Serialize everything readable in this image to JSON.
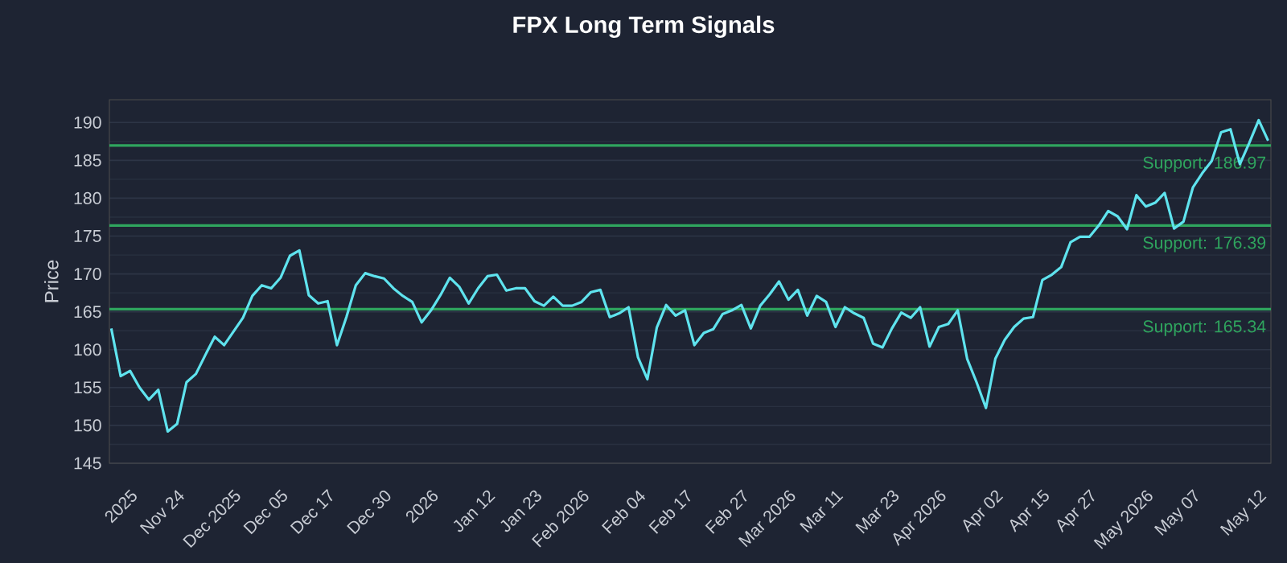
{
  "chart_data": {
    "type": "line",
    "title": "FPX Long Term Signals",
    "ylabel": "Price",
    "categories": [
      null,
      null,
      "2025",
      null,
      null,
      null,
      null,
      "Nov 24",
      null,
      null,
      null,
      null,
      null,
      "Dec 2025",
      null,
      null,
      null,
      null,
      "Dec 05",
      null,
      null,
      null,
      null,
      "Dec 17",
      null,
      null,
      null,
      null,
      null,
      "Dec 30",
      null,
      null,
      null,
      null,
      "2026",
      null,
      null,
      null,
      null,
      null,
      "Jan 12",
      null,
      null,
      null,
      null,
      "Jan 23",
      null,
      null,
      null,
      null,
      "Feb 2026",
      null,
      null,
      null,
      null,
      null,
      "Feb 04",
      null,
      null,
      null,
      null,
      "Feb 17",
      null,
      null,
      null,
      null,
      null,
      "Feb 27",
      null,
      null,
      null,
      null,
      "Mar 2026",
      null,
      null,
      null,
      null,
      "Mar 11",
      null,
      null,
      null,
      null,
      null,
      "Mar 23",
      null,
      null,
      null,
      null,
      "Apr 2026",
      null,
      null,
      null,
      null,
      null,
      "Apr 02",
      null,
      null,
      null,
      null,
      "Apr 15",
      null,
      null,
      null,
      null,
      "Apr 27",
      null,
      null,
      null,
      null,
      null,
      "May 2026",
      null,
      null,
      null,
      null,
      "May 07",
      null,
      null,
      null,
      null,
      null,
      null,
      "May 12",
      null
    ],
    "series": [
      {
        "color": "#5fe3ee",
        "values": [
          162.8,
          156.5,
          157.2,
          155,
          153.4,
          154.7,
          149.2,
          150.2,
          155.7,
          156.8,
          159.3,
          161.7,
          160.6,
          162.4,
          164.2,
          167.1,
          168.5,
          168.1,
          169.5,
          172.4,
          173.1,
          167.2,
          166.1,
          166.4,
          160.6,
          164.3,
          168.5,
          170.1,
          169.7,
          169.4,
          168.1,
          167.1,
          166.3,
          163.6,
          165.2,
          167.2,
          169.5,
          168.3,
          166.1,
          168.1,
          169.7,
          169.9,
          167.8,
          168.1,
          168.1,
          166.4,
          165.8,
          167.0,
          165.8,
          165.8,
          166.3,
          167.6,
          167.9,
          164.3,
          164.8,
          165.6,
          159,
          156.1,
          162.9,
          165.9,
          164.5,
          165.2,
          160.6,
          162.2,
          162.7,
          164.7,
          165.2,
          165.9,
          162.8,
          165.8,
          167.3,
          169.0,
          166.6,
          167.9,
          164.5,
          167.1,
          166.3,
          163.0,
          165.6,
          164.8,
          164.2,
          160.8,
          160.3,
          162.8,
          164.9,
          164.2,
          165.6,
          160.4,
          163.0,
          163.4,
          165.2,
          158.8,
          155.7,
          152.3,
          158.8,
          161.3,
          163.0,
          164.1,
          164.3,
          169.2,
          169.9,
          170.9,
          174.2,
          174.9,
          174.9,
          176.4,
          178.3,
          177.6,
          175.9,
          180.4,
          178.9,
          179.4,
          180.7,
          176.0,
          176.9,
          181.4,
          183.3,
          184.9,
          188.7,
          189.1,
          184.5,
          187.3,
          190.3,
          187.6
        ]
      }
    ],
    "ylim": [
      145,
      193
    ],
    "yticks": [
      145,
      150,
      155,
      160,
      165,
      170,
      175,
      180,
      185,
      190
    ],
    "grid": "y",
    "marker": "none",
    "line_style": "solid",
    "ref_lines": [
      {
        "axis": "y",
        "value": 186.97,
        "label": "Support: 186.97",
        "color": "#2fa55e"
      },
      {
        "axis": "y",
        "value": 176.39,
        "label": "Support: 176.39",
        "color": "#2fa55e"
      },
      {
        "axis": "y",
        "value": 165.34,
        "label": "Support: 165.34",
        "color": "#2fa55e"
      }
    ]
  }
}
